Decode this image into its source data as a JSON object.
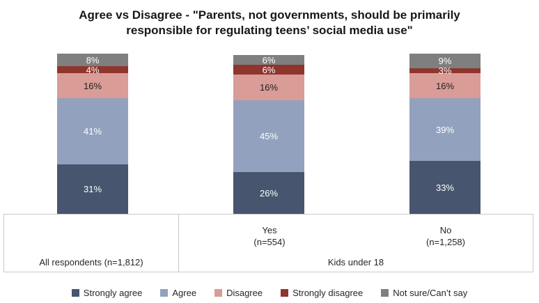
{
  "title": {
    "full": "Agree vs Disagree - \"Parents, not governments, should be primarily responsible for regulating teens’ social media use\"",
    "lines": [
      "Agree vs Disagree - \"Parents, not governments, should be primarily",
      "responsible for regulating teens’ social media use\""
    ]
  },
  "chart_data": {
    "type": "bar",
    "subtype": "stacked-100-percent-column",
    "title": "Agree vs Disagree - \"Parents, not governments, should be primarily responsible for regulating teens’ social media use\"",
    "value_suffix": "%",
    "ylim": [
      0,
      100
    ],
    "grid": false,
    "legend_position": "bottom",
    "categories": [
      {
        "label": "All respondents (n=1,812)",
        "sublabel": "",
        "group": ""
      },
      {
        "label": "Yes",
        "sublabel": "(n=554)",
        "group": "Kids under 18"
      },
      {
        "label": "No",
        "sublabel": "(n=1,258)",
        "group": "Kids under 18"
      }
    ],
    "series": [
      {
        "name": "Strongly agree",
        "color": "#47566e",
        "label_color": "#ffffff",
        "values": [
          31,
          26,
          33
        ]
      },
      {
        "name": "Agree",
        "color": "#92a2be",
        "label_color": "#ffffff",
        "values": [
          41,
          45,
          39
        ]
      },
      {
        "name": "Disagree",
        "color": "#d99c96",
        "label_color": "#1f1f1f",
        "values": [
          16,
          16,
          16
        ]
      },
      {
        "name": "Strongly disagree",
        "color": "#8f352d",
        "label_color": "#ffffff",
        "values": [
          4,
          6,
          3
        ]
      },
      {
        "name": "Not sure/Can’t say",
        "color": "#7f7f7f",
        "label_color": "#ffffff",
        "values": [
          8,
          6,
          9
        ]
      }
    ]
  },
  "colors": {
    "axis_line": "#c9c9c9",
    "title_text": "#171717",
    "body_text": "#262626"
  }
}
